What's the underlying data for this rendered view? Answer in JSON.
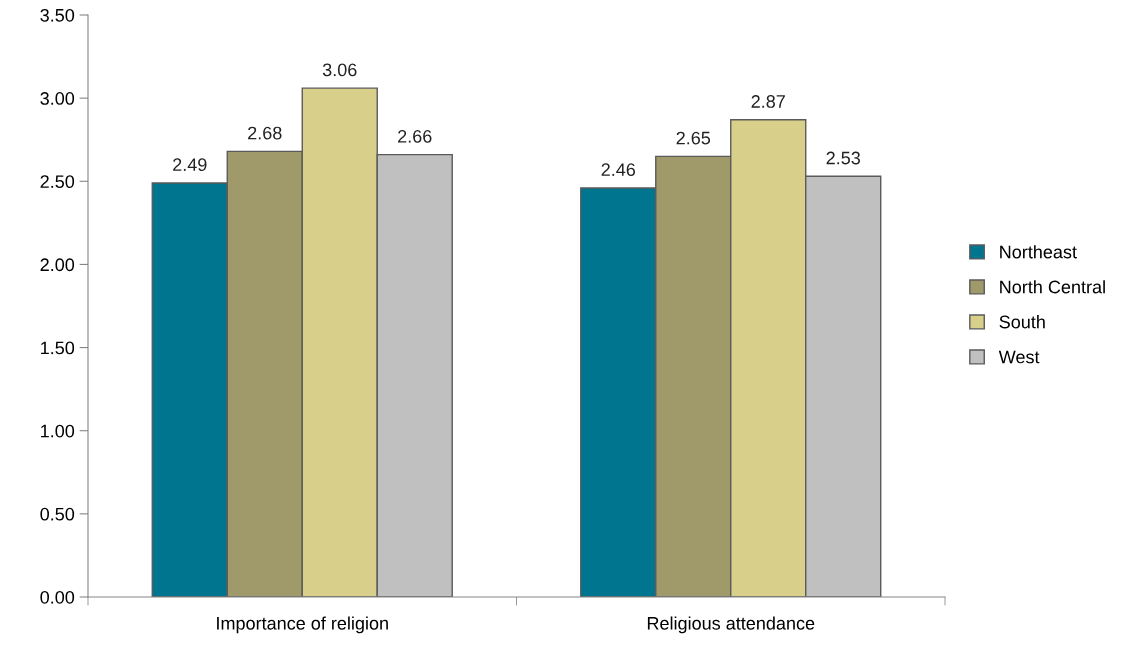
{
  "chart_data": {
    "type": "bar",
    "categories": [
      "Importance of religion",
      "Religious attendance"
    ],
    "series": [
      {
        "name": "Northeast",
        "color": "#00758f",
        "values": [
          2.49,
          2.46
        ]
      },
      {
        "name": "North Central",
        "color": "#a09a6a",
        "values": [
          2.68,
          2.65
        ]
      },
      {
        "name": "South",
        "color": "#d8d08a",
        "values": [
          3.06,
          2.87
        ]
      },
      {
        "name": "West",
        "color": "#c0c0c0",
        "values": [
          2.66,
          2.53
        ]
      }
    ],
    "ylim": [
      0,
      3.5
    ],
    "yticks": [
      {
        "value": 0,
        "label": "0.00"
      },
      {
        "value": 0.5,
        "label": "0.50"
      },
      {
        "value": 1,
        "label": "1.00"
      },
      {
        "value": 1.5,
        "label": "1.50"
      },
      {
        "value": 2,
        "label": "2.00"
      },
      {
        "value": 2.5,
        "label": "2.50"
      },
      {
        "value": 3,
        "label": "3.00"
      },
      {
        "value": 3.5,
        "label": "3.50"
      }
    ],
    "data_labels": true,
    "legend": "right",
    "grid": false
  }
}
